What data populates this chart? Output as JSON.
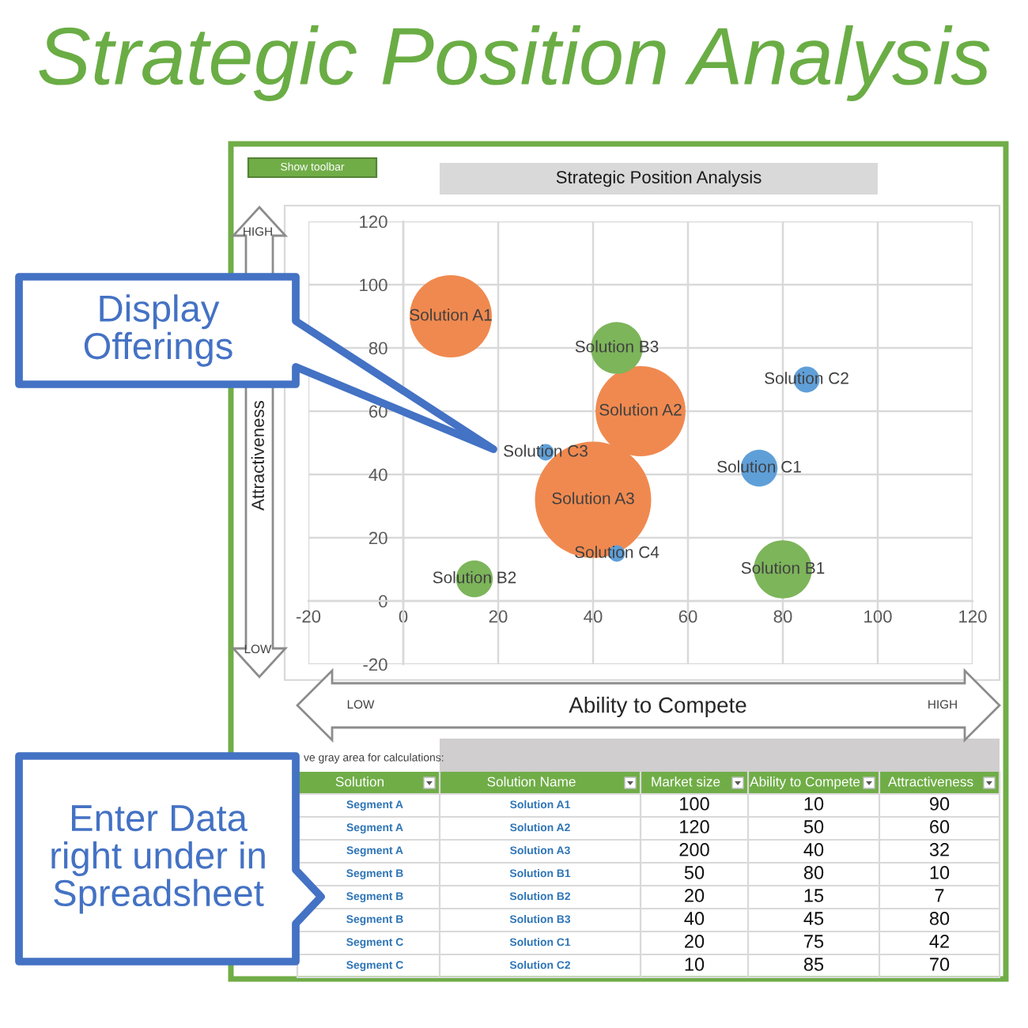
{
  "chart_data": [
    {
      "type": "bubble",
      "title": "Strategic Position Analysis",
      "subtitle": "Strategic Position Analysis",
      "xlabel": "Ability to Compete",
      "ylabel": "Attractiveness",
      "xlim": [
        -20,
        120
      ],
      "xticks": [
        -20,
        0,
        20,
        40,
        60,
        80,
        100,
        120
      ],
      "ylim": [
        -20,
        120
      ],
      "yticks": [
        -20,
        0,
        20,
        40,
        60,
        80,
        100,
        120
      ],
      "grid": true,
      "series": [
        {
          "color": "#f0894f",
          "x": [
            10,
            50,
            40
          ],
          "values": [
            90,
            60,
            32
          ],
          "sizes": [
            0.5,
            0.6,
            1
          ]
        },
        {
          "color": "#7db55a",
          "x": [
            80,
            15,
            45
          ],
          "values": [
            10,
            7,
            80
          ],
          "sizes": [
            0.25,
            0.1,
            0.2
          ]
        },
        {
          "color": "#5f9fd8",
          "x": [
            75,
            85,
            30,
            45
          ],
          "values": [
            42,
            70,
            47,
            15
          ],
          "sizes": [
            0.1,
            0.05,
            0.02,
            0.02
          ]
        }
      ],
      "annotations": [
        {
          "text": "Solution A1",
          "x": 10,
          "y": 90
        },
        {
          "text": "Solution A2",
          "x": 50,
          "y": 60
        },
        {
          "text": "Solution A3",
          "x": 40,
          "y": 32
        },
        {
          "text": "Solution B1",
          "x": 80,
          "y": 10
        },
        {
          "text": "Solution B2",
          "x": 15,
          "y": 7
        },
        {
          "text": "Solution B3",
          "x": 45,
          "y": 80
        },
        {
          "text": "Solution C1",
          "x": 75,
          "y": 42
        },
        {
          "text": "Solution C2",
          "x": 85,
          "y": 70
        },
        {
          "text": "Solution C3",
          "x": 30,
          "y": 47
        },
        {
          "text": "Solution C4",
          "x": 45,
          "y": 15
        },
        "Show toolbar",
        "HIGH",
        "LOW",
        "LOW",
        "HIGH",
        "Display Offerings",
        "Enter Data right under in Spreadsheet"
      ]
    },
    {
      "type": "other",
      "title": "ve gray area for calculations:",
      "categories": [
        "Solution",
        "Solution Name",
        "Market size",
        "Ability to Compete",
        "Attractiveness"
      ],
      "annotations": [
        "Segment A",
        "Solution A1",
        "100",
        "10",
        "90",
        "Segment A",
        "Solution A2",
        "120",
        "50",
        "60",
        "Segment A",
        "Solution A3",
        "200",
        "40",
        "32",
        "Segment B",
        "Solution B1",
        "50",
        "80",
        "10",
        "Segment B",
        "Solution B2",
        "20",
        "15",
        "7",
        "Segment B",
        "Solution B3",
        "40",
        "45",
        "80",
        "Segment C",
        "Solution C1",
        "20",
        "75",
        "42",
        "Segment C",
        "Solution C2",
        "10",
        "85",
        "70"
      ]
    }
  ]
}
